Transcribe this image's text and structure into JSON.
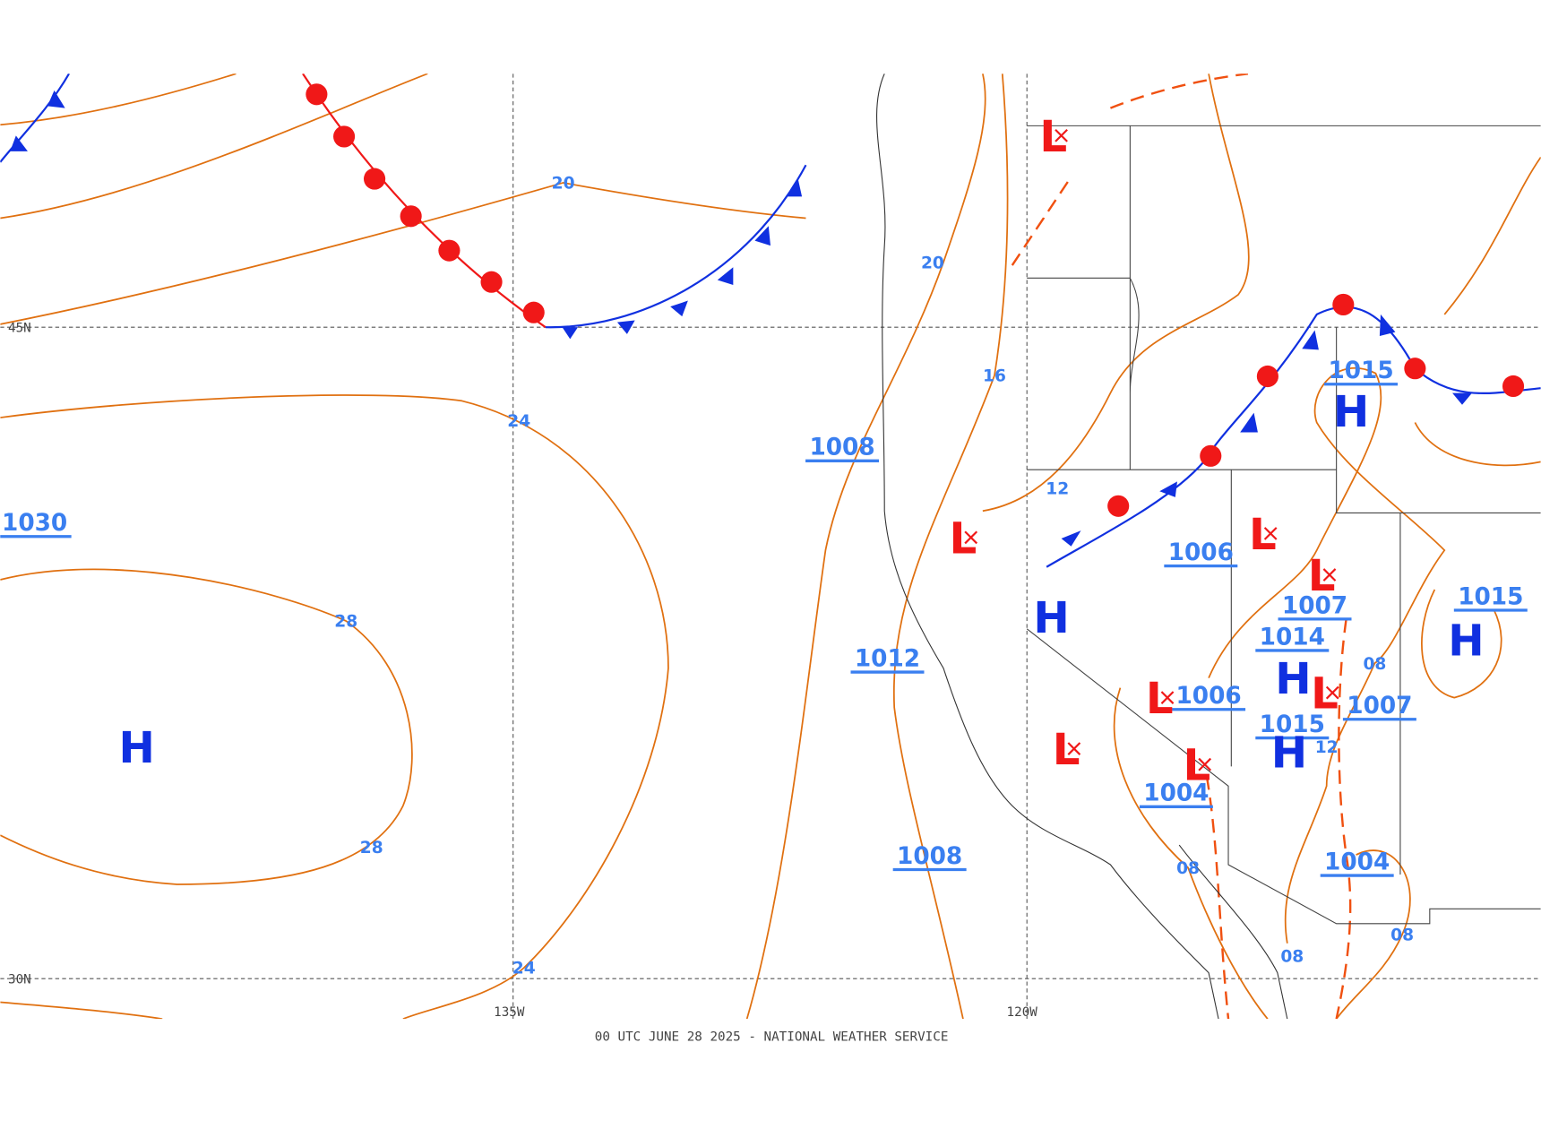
{
  "map": {
    "caption": "00 UTC JUNE 28 2025 - NATIONAL WEATHER SERVICE",
    "latitude_labels": [
      "45N",
      "30N"
    ],
    "longitude_labels": [
      "135W",
      "120W"
    ],
    "pressure_centers": [
      "1030",
      "1008",
      "1012",
      "1008",
      "1006",
      "1006",
      "1004",
      "1015",
      "1007",
      "1014",
      "1015",
      "1007",
      "1004",
      "1015"
    ],
    "isobar_labels": [
      "20",
      "20",
      "24",
      "24",
      "28",
      "28",
      "16",
      "12",
      "08",
      "08",
      "08",
      "08",
      "12"
    ],
    "high_symbols": [
      "H",
      "H",
      "H",
      "H",
      "H",
      "H"
    ],
    "low_symbols": [
      "L",
      "L",
      "L",
      "L",
      "L",
      "L",
      "L",
      "L"
    ]
  }
}
